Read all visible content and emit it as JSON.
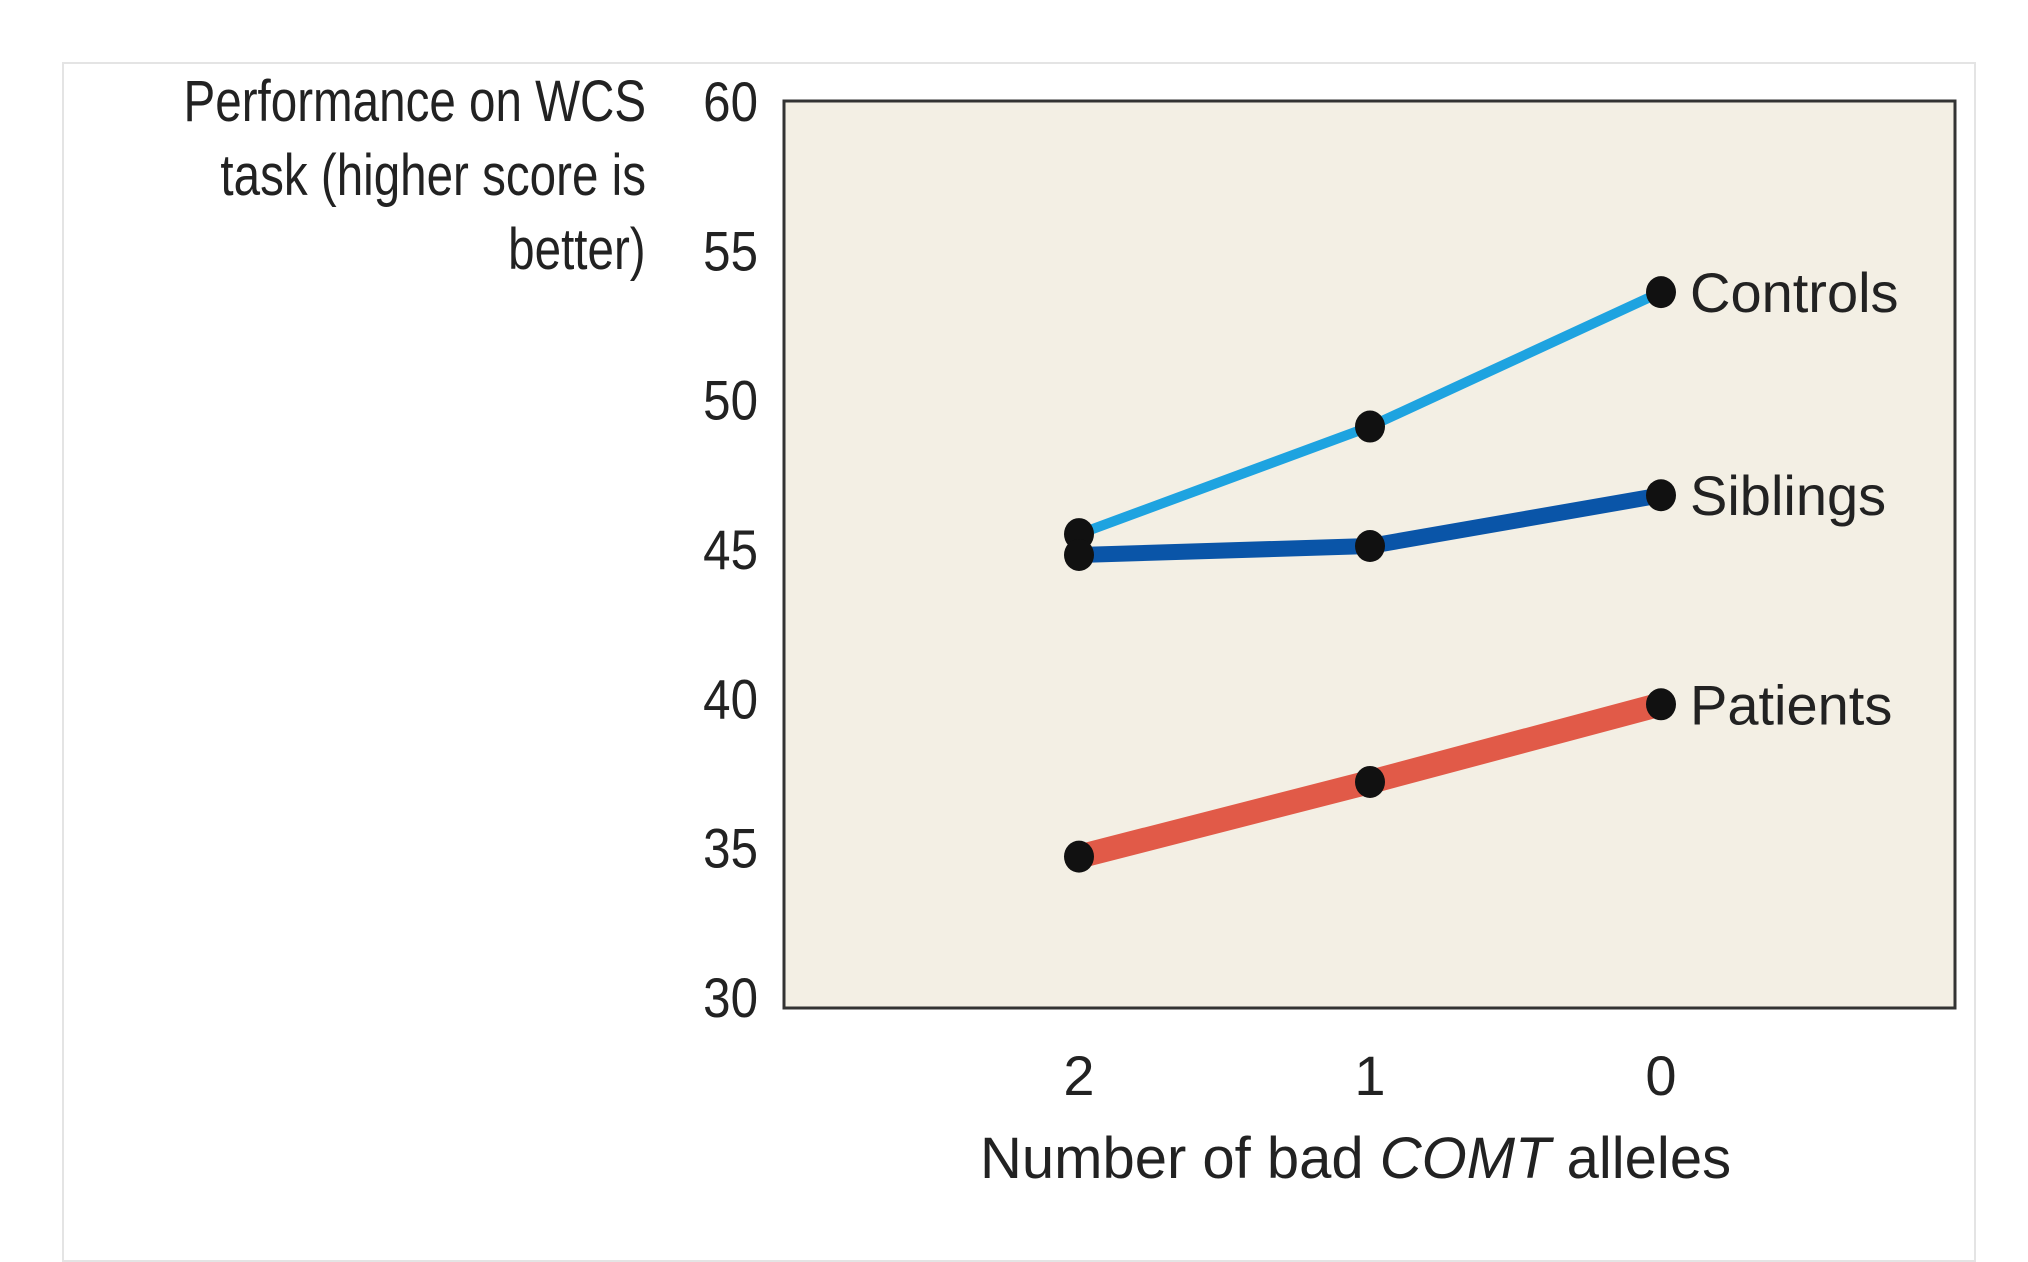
{
  "chart_data": {
    "type": "line",
    "ylabel_lines": [
      "Performance on WCS",
      "task (higher score is",
      "better)"
    ],
    "xlabel": {
      "prefix": "Number of bad ",
      "italic": "COMT",
      "suffix": " alleles"
    },
    "categories": [
      "2",
      "1",
      "0"
    ],
    "ylim": [
      30,
      60
    ],
    "yticks": [
      "60",
      "55",
      "50",
      "45",
      "40",
      "35",
      "30"
    ],
    "grid": false,
    "plot_background": "#f3efe4",
    "series": [
      {
        "name": "Controls",
        "values": [
          45.5,
          49.1,
          53.6
        ],
        "color": "#1ea3e0",
        "width": 10
      },
      {
        "name": "Siblings",
        "values": [
          44.8,
          45.1,
          46.8
        ],
        "color": "#0a55a8",
        "width": 16
      },
      {
        "name": "Patients",
        "values": [
          34.7,
          37.2,
          39.8
        ],
        "color": "#e15a48",
        "width": 24
      }
    ]
  }
}
